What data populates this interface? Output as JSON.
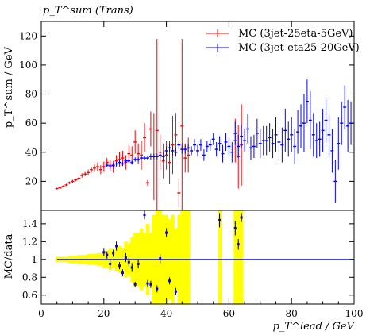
{
  "chart_data": [
    {
      "panel": "top",
      "type": "scatter",
      "title": "p_T^sum (Trans)",
      "ylabel": "p_T^sum / GeV",
      "xlim": [
        0,
        100
      ],
      "ylim": [
        0,
        130
      ],
      "yticks": [
        20,
        40,
        60,
        80,
        100,
        120
      ],
      "legend": "top-right",
      "series": [
        {
          "name": "MC (3jet-25eta-5GeV)",
          "color": "#ff0000",
          "points": [
            [
              5,
              15,
              0.6
            ],
            [
              6,
              15.5,
              0.6
            ],
            [
              7,
              16.5,
              0.7
            ],
            [
              8,
              17.5,
              0.8
            ],
            [
              9,
              19,
              0.9
            ],
            [
              10,
              20,
              1
            ],
            [
              11,
              21,
              1
            ],
            [
              12,
              22,
              1.2
            ],
            [
              13,
              24,
              1.5
            ],
            [
              14,
              25,
              1.5
            ],
            [
              15,
              26,
              2
            ],
            [
              16,
              28,
              2
            ],
            [
              17,
              29,
              2.5
            ],
            [
              18,
              30,
              3
            ],
            [
              19,
              28,
              3
            ],
            [
              20,
              30,
              3.5
            ],
            [
              21,
              33,
              3
            ],
            [
              22,
              31,
              4
            ],
            [
              23,
              30,
              4
            ],
            [
              24,
              34,
              4
            ],
            [
              25,
              35,
              5
            ],
            [
              26,
              36,
              5
            ],
            [
              27,
              33,
              5
            ],
            [
              28,
              39,
              6
            ],
            [
              29,
              38,
              6
            ],
            [
              30,
              47,
              8
            ],
            [
              31,
              39,
              7
            ],
            [
              32,
              38,
              10
            ],
            [
              33,
              50,
              10
            ],
            [
              34,
              19,
              2
            ],
            [
              35,
              56,
              12
            ],
            [
              36,
              37,
              30
            ],
            [
              37,
              55,
              63
            ],
            [
              38,
              40,
              12
            ],
            [
              39,
              34,
              12
            ],
            [
              40,
              38,
              10
            ],
            [
              41,
              33,
              15
            ],
            [
              42,
              45,
              20
            ],
            [
              43,
              52,
              15
            ],
            [
              44,
              12,
              10
            ],
            [
              45,
              58,
              60
            ],
            [
              46,
              36,
              10
            ],
            [
              47,
              38,
              12
            ],
            [
              62,
              48,
              15
            ],
            [
              63,
              37,
              22
            ],
            [
              64,
              45,
              28
            ]
          ]
        },
        {
          "name": "MC (3jet-eta25-20GeV)",
          "color": "#0000ff",
          "points": [
            [
              21,
              31,
              1.5
            ],
            [
              22,
              30,
              1.5
            ],
            [
              23,
              31,
              1.5
            ],
            [
              24,
              32,
              1.5
            ],
            [
              25,
              33,
              1.5
            ],
            [
              26,
              32,
              1.5
            ],
            [
              27,
              34,
              1.5
            ],
            [
              28,
              34,
              1.5
            ],
            [
              29,
              33,
              1.5
            ],
            [
              30,
              35,
              1.5
            ],
            [
              31,
              35,
              1.5
            ],
            [
              32,
              36,
              1.5
            ],
            [
              33,
              36,
              1.5
            ],
            [
              34,
              36,
              1.5
            ],
            [
              35,
              37,
              2
            ],
            [
              36,
              37,
              2
            ],
            [
              37,
              37,
              2
            ],
            [
              38,
              38,
              2
            ],
            [
              39,
              37,
              3
            ],
            [
              40,
              41,
              3
            ],
            [
              41,
              43,
              3
            ],
            [
              42,
              41,
              3
            ],
            [
              43,
              40,
              3
            ],
            [
              44,
              45,
              3
            ],
            [
              45,
              42,
              3
            ],
            [
              46,
              42,
              3
            ],
            [
              47,
              43,
              3
            ],
            [
              48,
              41,
              3
            ],
            [
              49,
              45,
              4
            ],
            [
              50,
              41,
              4
            ],
            [
              51,
              45,
              4
            ],
            [
              52,
              38,
              4
            ],
            [
              53,
              44,
              4
            ],
            [
              54,
              45,
              4
            ],
            [
              55,
              49,
              4
            ],
            [
              56,
              42,
              5
            ],
            [
              57,
              46,
              5
            ],
            [
              58,
              39,
              6
            ],
            [
              59,
              47,
              6
            ],
            [
              60,
              44,
              6
            ],
            [
              61,
              40,
              7
            ],
            [
              62,
              53,
              8
            ],
            [
              63,
              44,
              8
            ],
            [
              64,
              51,
              8
            ],
            [
              65,
              48,
              8
            ],
            [
              66,
              56,
              10
            ],
            [
              67,
              43,
              8
            ],
            [
              68,
              44,
              8
            ],
            [
              69,
              53,
              10
            ],
            [
              70,
              46,
              10
            ],
            [
              71,
              48,
              10
            ],
            [
              72,
              48,
              10
            ],
            [
              73,
              50,
              10
            ],
            [
              74,
              46,
              10
            ],
            [
              75,
              52,
              12
            ],
            [
              76,
              47,
              12
            ],
            [
              77,
              45,
              12
            ],
            [
              78,
              55,
              15
            ],
            [
              79,
              49,
              12
            ],
            [
              80,
              52,
              12
            ],
            [
              81,
              44,
              12
            ],
            [
              82,
              54,
              15
            ],
            [
              83,
              58,
              15
            ],
            [
              84,
              60,
              20
            ],
            [
              85,
              75,
              15
            ],
            [
              86,
              62,
              20
            ],
            [
              87,
              52,
              15
            ],
            [
              88,
              48,
              12
            ],
            [
              89,
              49,
              12
            ],
            [
              90,
              55,
              15
            ],
            [
              91,
              62,
              15
            ],
            [
              92,
              52,
              15
            ],
            [
              93,
              41,
              15
            ],
            [
              94,
              20,
              15
            ],
            [
              95,
              46,
              18
            ],
            [
              96,
              60,
              15
            ],
            [
              97,
              71,
              15
            ],
            [
              98,
              58,
              18
            ],
            [
              99,
              60,
              15
            ]
          ]
        }
      ]
    },
    {
      "panel": "bottom",
      "type": "scatter",
      "xlabel": "p_T^lead / GeV",
      "ylabel": "MC/data",
      "xlim": [
        0,
        100
      ],
      "ylim": [
        0.5,
        1.55
      ],
      "xticks": [
        0,
        20,
        40,
        60,
        80,
        100
      ],
      "yticks": [
        0.6,
        0.8,
        1,
        1.2,
        1.4
      ],
      "reference_line": 1,
      "band": {
        "color": "#ffff00",
        "values": [
          [
            5,
            0.03
          ],
          [
            6,
            0.03
          ],
          [
            7,
            0.03
          ],
          [
            8,
            0.03
          ],
          [
            9,
            0.04
          ],
          [
            10,
            0.04
          ],
          [
            11,
            0.04
          ],
          [
            12,
            0.05
          ],
          [
            13,
            0.05
          ],
          [
            14,
            0.05
          ],
          [
            15,
            0.06
          ],
          [
            16,
            0.06
          ],
          [
            17,
            0.06
          ],
          [
            18,
            0.07
          ],
          [
            19,
            0.07
          ],
          [
            20,
            0.1
          ],
          [
            21,
            0.1
          ],
          [
            22,
            0.12
          ],
          [
            23,
            0.1
          ],
          [
            24,
            0.13
          ],
          [
            25,
            0.15
          ],
          [
            26,
            0.12
          ],
          [
            27,
            0.2
          ],
          [
            28,
            0.18
          ],
          [
            29,
            0.25
          ],
          [
            30,
            0.3
          ],
          [
            31,
            0.3
          ],
          [
            32,
            0.35
          ],
          [
            33,
            0.3
          ],
          [
            34,
            0.4
          ],
          [
            35,
            0.3
          ],
          [
            36,
            0.5
          ],
          [
            37,
            0.6
          ],
          [
            38,
            0.6
          ],
          [
            39,
            0.5
          ],
          [
            40,
            0.5
          ],
          [
            41,
            0.45
          ],
          [
            42,
            0.5
          ],
          [
            43,
            0.35
          ],
          [
            44,
            0.5
          ],
          [
            45,
            0.6
          ],
          [
            46,
            0.6
          ],
          [
            47,
            0.6
          ],
          [
            57,
            0.6
          ],
          [
            62,
            0.6
          ],
          [
            63,
            0.6
          ],
          [
            64,
            0.6
          ]
        ]
      },
      "points": [
        {
          "x": 20,
          "y": 1.08,
          "err": 0.04
        },
        {
          "x": 21,
          "y": 1.05,
          "err": 0.04
        },
        {
          "x": 22,
          "y": 0.95,
          "err": 0.04
        },
        {
          "x": 23,
          "y": 1.07,
          "err": 0.04
        },
        {
          "x": 24,
          "y": 1.15,
          "err": 0.05
        },
        {
          "x": 25,
          "y": 0.93,
          "err": 0.04
        },
        {
          "x": 26,
          "y": 0.85,
          "err": 0.04
        },
        {
          "x": 27,
          "y": 1.02,
          "err": 0.05
        },
        {
          "x": 28,
          "y": 0.97,
          "err": 0.05
        },
        {
          "x": 29,
          "y": 0.91,
          "err": 0.05
        },
        {
          "x": 30,
          "y": 0.72,
          "err": 0.03
        },
        {
          "x": 31,
          "y": 0.95,
          "err": 0.05
        },
        {
          "x": 33,
          "y": 1.5,
          "err": 0.05
        },
        {
          "x": 34,
          "y": 0.73,
          "err": 0.04
        },
        {
          "x": 35,
          "y": 0.72,
          "err": 0.04
        },
        {
          "x": 37,
          "y": 0.67,
          "err": 0.04
        },
        {
          "x": 38,
          "y": 1.01,
          "err": 0.05
        },
        {
          "x": 40,
          "y": 1.3,
          "err": 0.05
        },
        {
          "x": 41,
          "y": 0.76,
          "err": 0.04
        },
        {
          "x": 43,
          "y": 0.64,
          "err": 0.04
        },
        {
          "x": 57,
          "y": 1.44,
          "err": 0.08
        },
        {
          "x": 62,
          "y": 1.35,
          "err": 0.08
        },
        {
          "x": 63,
          "y": 1.17,
          "err": 0.06
        },
        {
          "x": 64,
          "y": 1.47,
          "err": 0.05
        }
      ]
    }
  ]
}
